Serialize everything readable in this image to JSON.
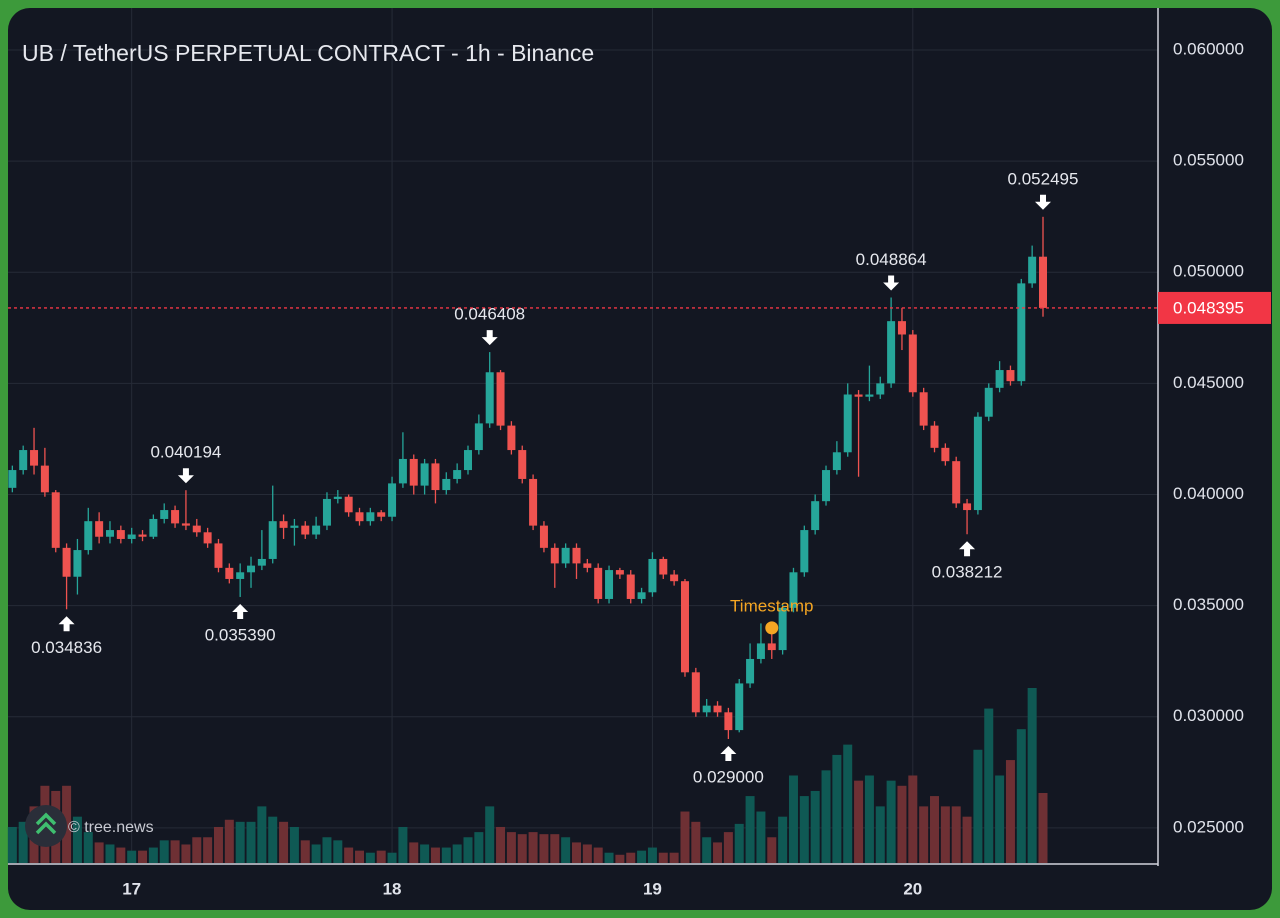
{
  "chart_data": {
    "type": "candlestick",
    "title": "UB / TetherUS PERPETUAL CONTRACT - 1h - Binance",
    "watermark": "© tree.news",
    "xlim": [
      -0.4,
      105.6
    ],
    "xticks": [
      {
        "value": 11,
        "label": "17"
      },
      {
        "value": 35,
        "label": "18"
      },
      {
        "value": 59,
        "label": "19"
      },
      {
        "value": 83,
        "label": "20"
      }
    ],
    "ylim": [
      0.02342,
      0.06189
    ],
    "yticks": [
      {
        "value": 0.025,
        "label": "0.025000"
      },
      {
        "value": 0.03,
        "label": "0.030000"
      },
      {
        "value": 0.035,
        "label": "0.035000"
      },
      {
        "value": 0.04,
        "label": "0.040000"
      },
      {
        "value": 0.045,
        "label": "0.045000"
      },
      {
        "value": 0.05,
        "label": "0.050000"
      },
      {
        "value": 0.055,
        "label": "0.055000"
      },
      {
        "value": 0.06,
        "label": "0.060000"
      }
    ],
    "grid": true,
    "up_color": "#26a69a",
    "down_color": "#ef5350",
    "volume_up_color": "#0f5954",
    "volume_down_color": "#6e3034",
    "open": [
      0.0403,
      0.0411,
      0.042,
      0.0413,
      0.0401,
      0.0376,
      0.0363,
      0.0375,
      0.0388,
      0.0381,
      0.0384,
      0.038,
      0.0382,
      0.0381,
      0.0389,
      0.0393,
      0.0387,
      0.0386,
      0.0383,
      0.0378,
      0.0367,
      0.0362,
      0.0365,
      0.0368,
      0.0371,
      0.0388,
      0.0385,
      0.0386,
      0.0382,
      0.0386,
      0.0398,
      0.0399,
      0.0392,
      0.0388,
      0.0392,
      0.039,
      0.0405,
      0.0416,
      0.0404,
      0.0414,
      0.0402,
      0.0407,
      0.0411,
      0.042,
      0.0432,
      0.0455,
      0.0431,
      0.042,
      0.0407,
      0.0386,
      0.0376,
      0.0369,
      0.0376,
      0.0369,
      0.0367,
      0.0353,
      0.0366,
      0.0364,
      0.0353,
      0.0356,
      0.0371,
      0.0364,
      0.0361,
      0.032,
      0.0302,
      0.0305,
      0.0302,
      0.0294,
      0.0315,
      0.0326,
      0.0333,
      0.033,
      0.0349,
      0.0365,
      0.0384,
      0.0397,
      0.0411,
      0.0419,
      0.0445,
      0.0444,
      0.0445,
      0.045,
      0.0478,
      0.0472,
      0.0446,
      0.0431,
      0.0421,
      0.0415,
      0.0396,
      0.0393,
      0.0435,
      0.0448,
      0.0456,
      0.0451,
      0.0495,
      0.0507
    ],
    "high": [
      0.0413,
      0.0422,
      0.043,
      0.0421,
      0.0402,
      0.0378,
      0.038,
      0.0394,
      0.0392,
      0.0388,
      0.0386,
      0.0385,
      0.0384,
      0.0391,
      0.0396,
      0.0395,
      0.040194,
      0.0389,
      0.0385,
      0.038,
      0.0369,
      0.0369,
      0.0372,
      0.0384,
      0.0404,
      0.0391,
      0.0389,
      0.0388,
      0.039,
      0.0401,
      0.0402,
      0.04,
      0.0394,
      0.0394,
      0.0393,
      0.0408,
      0.0428,
      0.0418,
      0.0416,
      0.0416,
      0.041,
      0.0414,
      0.0422,
      0.0436,
      0.046408,
      0.0456,
      0.0433,
      0.0422,
      0.0409,
      0.0388,
      0.0378,
      0.0378,
      0.0378,
      0.0371,
      0.0369,
      0.0368,
      0.0367,
      0.0366,
      0.0358,
      0.0374,
      0.0372,
      0.0366,
      0.0362,
      0.0322,
      0.0308,
      0.0307,
      0.0304,
      0.0317,
      0.0333,
      0.0342,
      0.0338,
      0.0351,
      0.0367,
      0.0386,
      0.04,
      0.0413,
      0.0424,
      0.045,
      0.0447,
      0.0458,
      0.0453,
      0.048864,
      0.0484,
      0.0474,
      0.0448,
      0.0433,
      0.0423,
      0.0417,
      0.0398,
      0.0437,
      0.045,
      0.046,
      0.0458,
      0.0497,
      0.0512,
      0.052495
    ],
    "low": [
      0.0401,
      0.0409,
      0.0409,
      0.0399,
      0.0374,
      0.034836,
      0.0355,
      0.0373,
      0.0378,
      0.0378,
      0.0378,
      0.0378,
      0.0379,
      0.038,
      0.0387,
      0.0385,
      0.0384,
      0.0381,
      0.0376,
      0.0365,
      0.036,
      0.03539,
      0.0358,
      0.0366,
      0.0369,
      0.038,
      0.0377,
      0.038,
      0.038,
      0.0384,
      0.0396,
      0.039,
      0.0386,
      0.0386,
      0.0388,
      0.0388,
      0.0403,
      0.04,
      0.04,
      0.0396,
      0.04,
      0.0405,
      0.0409,
      0.0418,
      0.043,
      0.0429,
      0.0418,
      0.0405,
      0.0384,
      0.0374,
      0.0358,
      0.0367,
      0.0362,
      0.0365,
      0.0351,
      0.0351,
      0.0362,
      0.0351,
      0.0351,
      0.0354,
      0.0362,
      0.0359,
      0.0318,
      0.03,
      0.03,
      0.03,
      0.029,
      0.0293,
      0.0313,
      0.0324,
      0.0326,
      0.0328,
      0.0347,
      0.0363,
      0.0382,
      0.0395,
      0.0409,
      0.0417,
      0.0408,
      0.0442,
      0.0443,
      0.0448,
      0.0465,
      0.0444,
      0.0429,
      0.0419,
      0.0413,
      0.0394,
      0.038212,
      0.0391,
      0.0433,
      0.0446,
      0.0449,
      0.0449,
      0.0493,
      0.048
    ],
    "close": [
      0.0411,
      0.042,
      0.0413,
      0.0401,
      0.0376,
      0.0363,
      0.0375,
      0.0388,
      0.0381,
      0.0384,
      0.038,
      0.0382,
      0.0381,
      0.0389,
      0.0393,
      0.0387,
      0.0386,
      0.0383,
      0.0378,
      0.0367,
      0.0362,
      0.0365,
      0.0368,
      0.0371,
      0.0388,
      0.0385,
      0.0386,
      0.0382,
      0.0386,
      0.0398,
      0.0399,
      0.0392,
      0.0388,
      0.0392,
      0.039,
      0.0405,
      0.0416,
      0.0404,
      0.0414,
      0.0402,
      0.0407,
      0.0411,
      0.042,
      0.0432,
      0.0455,
      0.0431,
      0.042,
      0.0407,
      0.0386,
      0.0376,
      0.0369,
      0.0376,
      0.0369,
      0.0367,
      0.0353,
      0.0366,
      0.0364,
      0.0353,
      0.0356,
      0.0371,
      0.0364,
      0.0361,
      0.032,
      0.0302,
      0.0305,
      0.0302,
      0.0294,
      0.0315,
      0.0326,
      0.0333,
      0.033,
      0.0349,
      0.0365,
      0.0384,
      0.0397,
      0.0411,
      0.0419,
      0.0445,
      0.0444,
      0.0445,
      0.045,
      0.0478,
      0.0472,
      0.0446,
      0.0431,
      0.0421,
      0.0415,
      0.0396,
      0.0393,
      0.0435,
      0.0448,
      0.0456,
      0.0451,
      0.0495,
      0.0507,
      0.048395
    ],
    "volume": [
      35,
      40,
      55,
      75,
      70,
      75,
      45,
      30,
      20,
      18,
      15,
      12,
      12,
      15,
      22,
      22,
      18,
      25,
      25,
      35,
      42,
      40,
      40,
      55,
      45,
      40,
      35,
      22,
      18,
      25,
      22,
      15,
      12,
      10,
      12,
      10,
      35,
      20,
      18,
      15,
      15,
      18,
      25,
      30,
      55,
      35,
      30,
      28,
      30,
      28,
      28,
      25,
      20,
      18,
      15,
      10,
      8,
      10,
      12,
      15,
      10,
      10,
      50,
      40,
      25,
      20,
      30,
      38,
      65,
      50,
      25,
      45,
      85,
      65,
      70,
      90,
      105,
      115,
      80,
      85,
      55,
      80,
      75,
      85,
      55,
      65,
      55,
      55,
      45,
      110,
      150,
      85,
      100,
      130,
      170,
      68
    ],
    "last_price": 0.048395,
    "last_price_color": "#f23645",
    "annotations": [
      {
        "x": 5,
        "value": 0.034836,
        "label": "0.034836",
        "position": "below"
      },
      {
        "x": 16,
        "value": 0.040194,
        "label": "0.040194",
        "position": "above"
      },
      {
        "x": 21,
        "value": 0.03539,
        "label": "0.035390",
        "position": "below"
      },
      {
        "x": 44,
        "value": 0.046408,
        "label": "0.046408",
        "position": "above"
      },
      {
        "x": 66,
        "value": 0.029,
        "label": "0.029000",
        "position": "below"
      },
      {
        "x": 81,
        "value": 0.048864,
        "label": "0.048864",
        "position": "above"
      },
      {
        "x": 88,
        "value": 0.038212,
        "label": "0.038212",
        "position": "below"
      },
      {
        "x": 95,
        "value": 0.052495,
        "label": "0.052495",
        "position": "above"
      }
    ],
    "marker": {
      "x": 70,
      "value": 0.034,
      "label": "Timestamp",
      "color": "#f5a623"
    }
  }
}
